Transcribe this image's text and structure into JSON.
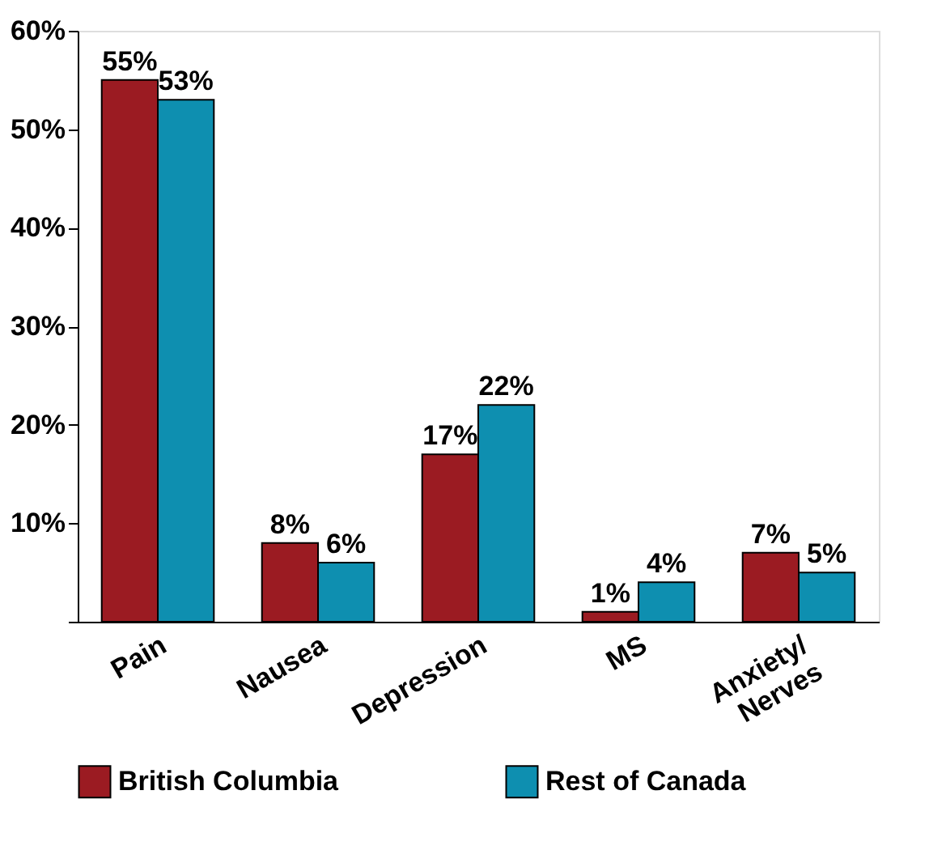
{
  "chart_data": {
    "type": "bar",
    "categories": [
      "Pain",
      "Nausea",
      "Depression",
      "MS",
      "Anxiety/\nNerves"
    ],
    "series": [
      {
        "name": "British Columbia",
        "color": "#9b1b22",
        "values": [
          55,
          8,
          17,
          1,
          7
        ],
        "value_labels": [
          "55%",
          "8%",
          "17%",
          "1%",
          "7%"
        ]
      },
      {
        "name": "Rest of Canada",
        "color": "#0e8fb0",
        "values": [
          53,
          6,
          22,
          4,
          5
        ],
        "value_labels": [
          "53%",
          "6%",
          "22%",
          "4%",
          "5%"
        ]
      }
    ],
    "ylim": [
      0,
      60
    ],
    "yticks": [
      {
        "value": 0,
        "label": null
      },
      {
        "value": 10,
        "label": "10%"
      },
      {
        "value": 20,
        "label": "20%"
      },
      {
        "value": 30,
        "label": "30%"
      },
      {
        "value": 40,
        "label": "40%"
      },
      {
        "value": 50,
        "label": "50%"
      },
      {
        "value": 60,
        "label": "60%"
      }
    ],
    "grid": false,
    "legend": "bottom"
  }
}
